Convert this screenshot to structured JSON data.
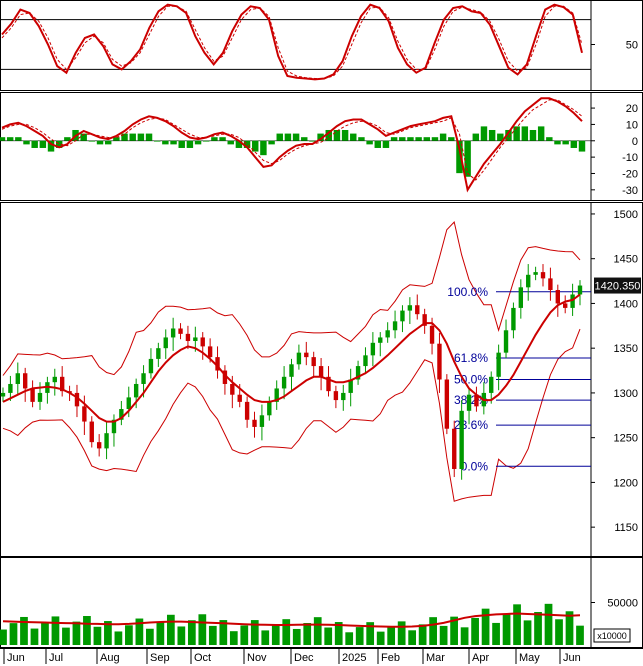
{
  "chart_data": [
    {
      "panel": "stochastic",
      "type": "line",
      "y_ticks": [
        "50"
      ],
      "ylim": [
        0,
        100
      ],
      "reference_lines": [
        80,
        20
      ],
      "series": [
        {
          "color": "#cc0000",
          "style": "solid",
          "values": [
            62,
            75,
            92,
            88,
            72,
            50,
            24,
            16,
            40,
            58,
            62,
            48,
            26,
            20,
            30,
            44,
            70,
            90,
            98,
            96,
            88,
            60,
            40,
            26,
            40,
            66,
            86,
            96,
            94,
            80,
            36,
            12,
            10,
            9,
            8,
            9,
            14,
            30,
            60,
            84,
            98,
            94,
            78,
            46,
            26,
            16,
            22,
            52,
            80,
            94,
            96,
            90,
            88,
            74,
            48,
            22,
            14,
            26,
            60,
            92,
            98,
            95,
            86,
            40
          ]
        },
        {
          "color": "#cc0000",
          "style": "dashed",
          "values": [
            58,
            70,
            86,
            88,
            78,
            58,
            32,
            20,
            34,
            52,
            60,
            52,
            32,
            24,
            28,
            40,
            62,
            84,
            96,
            96,
            90,
            68,
            46,
            30,
            36,
            58,
            80,
            92,
            94,
            84,
            46,
            18,
            12,
            10,
            9,
            9,
            12,
            24,
            50,
            76,
            94,
            95,
            82,
            54,
            32,
            20,
            20,
            44,
            72,
            90,
            95,
            92,
            89,
            78,
            56,
            30,
            18,
            22,
            50,
            84,
            96,
            96,
            88,
            50
          ]
        }
      ]
    },
    {
      "panel": "macd",
      "type": "line",
      "y_ticks": [
        "20",
        "10",
        "0",
        "-10",
        "-20",
        "-30"
      ],
      "ylim": [
        -35,
        28
      ],
      "series": [
        {
          "color": "#cc0000",
          "style": "solid",
          "values": [
            8,
            10,
            11,
            9,
            6,
            3,
            -2,
            -4,
            -2,
            3,
            6,
            4,
            2,
            1,
            3,
            6,
            10,
            13,
            15,
            14,
            12,
            9,
            5,
            2,
            1,
            2,
            4,
            5,
            3,
            0,
            -4,
            -10,
            -16,
            -15,
            -10,
            -6,
            -3,
            -2,
            -2,
            1,
            5,
            9,
            12,
            13,
            13,
            10,
            7,
            3,
            5,
            7,
            9,
            10,
            11,
            12,
            14,
            15,
            -5,
            -30,
            -22,
            -14,
            -8,
            -2,
            5,
            12,
            18,
            22,
            26,
            26,
            24,
            21,
            17,
            12
          ]
        },
        {
          "color": "#cc0000",
          "style": "dashed",
          "values": [
            7,
            9,
            10,
            10,
            8,
            5,
            1,
            -2,
            -3,
            0,
            4,
            4,
            3,
            2,
            2,
            4,
            8,
            11,
            13,
            14,
            13,
            10,
            7,
            4,
            2,
            2,
            3,
            4,
            4,
            2,
            -2,
            -7,
            -12,
            -14,
            -12,
            -8,
            -5,
            -3,
            -2,
            -1,
            2,
            6,
            9,
            11,
            12,
            11,
            9,
            5,
            4,
            6,
            8,
            9,
            10,
            11,
            12,
            14,
            4,
            -20,
            -24,
            -18,
            -11,
            -4,
            2,
            8,
            14,
            19,
            22,
            25,
            25,
            22,
            19,
            15
          ]
        }
      ],
      "histogram_color": "#009900"
    },
    {
      "panel": "price",
      "type": "candlestick",
      "y_ticks": [
        "1500",
        "1450",
        "1400",
        "1350",
        "1300",
        "1250",
        "1200",
        "1150"
      ],
      "ylim": [
        1120,
        1510
      ],
      "x_ticks": [
        "Jun",
        "Jul",
        "Aug",
        "Sep",
        "Oct",
        "Nov",
        "Dec",
        "2025",
        "Feb",
        "Mar",
        "Apr",
        "May",
        "Jun"
      ],
      "last_price_label": "1420.350",
      "close": [
        1300,
        1310,
        1322,
        1305,
        1290,
        1300,
        1312,
        1318,
        1302,
        1300,
        1285,
        1268,
        1245,
        1238,
        1255,
        1270,
        1282,
        1295,
        1310,
        1322,
        1338,
        1350,
        1362,
        1372,
        1366,
        1358,
        1362,
        1352,
        1340,
        1325,
        1310,
        1298,
        1290,
        1270,
        1262,
        1275,
        1290,
        1305,
        1318,
        1332,
        1345,
        1340,
        1330,
        1318,
        1302,
        1292,
        1300,
        1315,
        1330,
        1342,
        1356,
        1362,
        1370,
        1380,
        1392,
        1398,
        1388,
        1375,
        1355,
        1315,
        1260,
        1215,
        1280,
        1298,
        1285,
        1300,
        1318,
        1345,
        1370,
        1395,
        1418,
        1432,
        1435,
        1428,
        1415,
        1400,
        1395,
        1410,
        1420
      ],
      "ma": [
        1290,
        1294,
        1298,
        1302,
        1305,
        1306,
        1307,
        1306,
        1304,
        1300,
        1295,
        1288,
        1280,
        1272,
        1268,
        1268,
        1272,
        1280,
        1290,
        1300,
        1312,
        1324,
        1334,
        1342,
        1348,
        1352,
        1350,
        1345,
        1338,
        1330,
        1320,
        1312,
        1305,
        1298,
        1292,
        1290,
        1290,
        1292,
        1296,
        1302,
        1308,
        1314,
        1318,
        1318,
        1315,
        1312,
        1312,
        1314,
        1318,
        1322,
        1328,
        1335,
        1342,
        1350,
        1358,
        1366,
        1372,
        1378,
        1378,
        1370,
        1355,
        1335,
        1318,
        1305,
        1298,
        1292,
        1292,
        1298,
        1308,
        1320,
        1335,
        1350,
        1365,
        1378,
        1390,
        1398,
        1402,
        1404,
        1410
      ],
      "fibonacci": [
        {
          "label": "100.0%",
          "value": 1413
        },
        {
          "label": "61.8%",
          "value": 1339
        },
        {
          "label": "50.0%",
          "value": 1315
        },
        {
          "label": "38.2%",
          "value": 1292
        },
        {
          "label": "23.6%",
          "value": 1264
        },
        {
          "label": "0.0%",
          "value": 1218
        }
      ],
      "colors": {
        "up": "#009900",
        "down": "#cc0000",
        "bands": "#cc0000",
        "fib": "#000099"
      }
    },
    {
      "panel": "volume",
      "type": "bar",
      "y_ticks": [
        "50000"
      ],
      "ylim": [
        0,
        100000
      ],
      "unit_label": "x10000",
      "ma": [
        28000,
        27500,
        27000,
        26800,
        26500,
        26000,
        25800,
        25500,
        25000,
        24800,
        24500,
        24500,
        24800,
        25500,
        26500,
        27000,
        27500,
        27500,
        27000,
        26500,
        26000,
        25500,
        25000,
        24500,
        24000,
        23800,
        23500,
        23500,
        23800,
        24000,
        24000,
        23800,
        23500,
        23000,
        22500,
        22000,
        21800,
        21500,
        21500,
        21800,
        22500,
        24000,
        26000,
        29000,
        32000,
        34000,
        35000,
        36000,
        36500,
        37000,
        36500,
        36000,
        35500,
        35000,
        34500,
        35000
      ],
      "colors": {
        "bars": "#009900",
        "ma": "#cc0000"
      }
    }
  ]
}
